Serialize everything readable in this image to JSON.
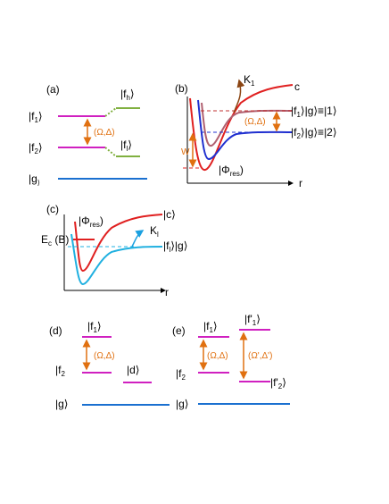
{
  "panels": {
    "a": {
      "label": "(a)",
      "f1": [
        "|f",
        "1",
        "⟩"
      ],
      "f2": [
        "|f",
        "2",
        "⟩"
      ],
      "g": [
        "|g",
        "⟩"
      ],
      "fh": [
        "|f",
        "h",
        "⟩"
      ],
      "fl": [
        "|f",
        "l",
        "⟩"
      ],
      "coupling": "(Ω,Δ)"
    },
    "b": {
      "label": "(b)",
      "k1": [
        "K",
        "1"
      ],
      "c": "c",
      "state1": [
        "|f",
        "1",
        "⟩|g⟩≡|1⟩"
      ],
      "coupling": "(Ω,Δ)",
      "state2": [
        "|f",
        "2",
        "⟩|g⟩≡|2⟩"
      ],
      "w": "W",
      "phi": [
        "|Φ",
        "res",
        ")"
      ],
      "r": "r"
    },
    "c": {
      "label": "(c)",
      "phi": [
        "|Φ",
        "res",
        ")"
      ],
      "c": "|c⟩",
      "kl": [
        "K",
        "l"
      ],
      "ec": [
        "E",
        "c",
        " (B)"
      ],
      "flg": [
        "|f",
        "l",
        "⟩|g⟩"
      ],
      "r": "r"
    },
    "d": {
      "label": "(d)",
      "f1": [
        "|f",
        "1",
        "⟩"
      ],
      "f2": [
        "|f",
        "2"
      ],
      "coupling": "(Ω,Δ)",
      "d": "|d⟩",
      "g": "|g⟩"
    },
    "e": {
      "label": "(e)",
      "f1": [
        "|f",
        "1",
        "⟩"
      ],
      "f1p": [
        "|f'",
        "1",
        "⟩"
      ],
      "f2": [
        "|f",
        "2"
      ],
      "coupling": "(Ω,Δ)",
      "couplingp": "(Ω',Δ')",
      "f2p": [
        "|f'",
        "2",
        "⟩"
      ],
      "g": "|g⟩"
    }
  }
}
